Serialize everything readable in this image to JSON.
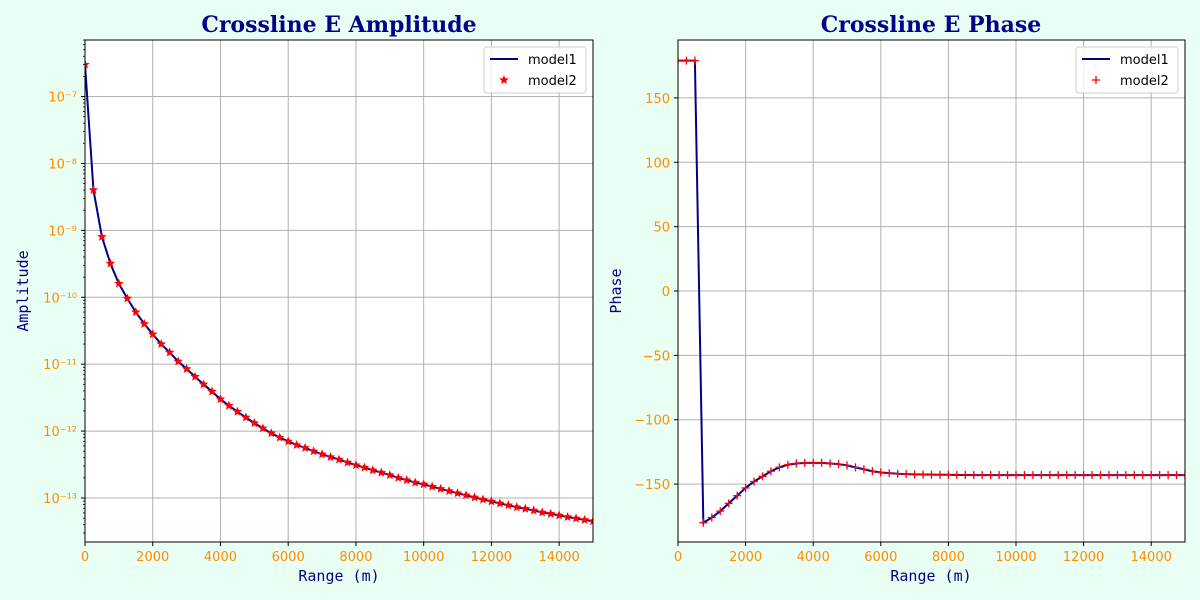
{
  "chart_data": [
    {
      "type": "line",
      "title": "Crossline E Amplitude",
      "xlabel": "Range (m)",
      "ylabel": "Amplitude",
      "xlim": [
        0,
        15000
      ],
      "ylim": [
        2.2e-14,
        7e-07
      ],
      "yscale": "log",
      "grid": true,
      "legend_position": "top-right",
      "x_ticks": [
        0,
        2000,
        4000,
        6000,
        8000,
        10000,
        12000,
        14000
      ],
      "y_ticks": [
        -13,
        -12,
        -11,
        -10,
        -9,
        -8,
        -7
      ],
      "series": [
        {
          "name": "model1",
          "style": "line",
          "color": "#00008b"
        },
        {
          "name": "model2",
          "style": "star-marker",
          "color": "#ff0000"
        }
      ],
      "x": [
        0,
        250,
        500,
        750,
        1000,
        1250,
        1500,
        1750,
        2000,
        2250,
        2500,
        2750,
        3000,
        3250,
        3500,
        3750,
        4000,
        4250,
        4500,
        4750,
        5000,
        5250,
        5500,
        5750,
        6000,
        6250,
        6500,
        6750,
        7000,
        7250,
        7500,
        7750,
        8000,
        8250,
        8500,
        8750,
        9000,
        9250,
        9500,
        9750,
        10000,
        10250,
        10500,
        10750,
        11000,
        11250,
        11500,
        11750,
        12000,
        12250,
        12500,
        12750,
        13000,
        13250,
        13500,
        13750,
        14000,
        14250,
        14500,
        14750,
        15000
      ],
      "values": [
        3e-07,
        4e-09,
        8e-10,
        3.2e-10,
        1.6e-10,
        9.6e-11,
        6e-11,
        4e-11,
        2.8e-11,
        2e-11,
        1.5e-11,
        1.1e-11,
        8.5e-12,
        6.5e-12,
        5e-12,
        3.9e-12,
        3e-12,
        2.4e-12,
        1.95e-12,
        1.6e-12,
        1.32e-12,
        1.1e-12,
        9.3e-13,
        8e-13,
        7e-13,
        6.2e-13,
        5.6e-13,
        5e-13,
        4.5e-13,
        4.1e-13,
        3.75e-13,
        3.4e-13,
        3.1e-13,
        2.85e-13,
        2.6e-13,
        2.4e-13,
        2.2e-13,
        2e-13,
        1.85e-13,
        1.7e-13,
        1.6e-13,
        1.48e-13,
        1.37e-13,
        1.27e-13,
        1.18e-13,
        1.1e-13,
        1.02e-13,
        9.5e-14,
        8.9e-14,
        8.3e-14,
        7.8e-14,
        7.3e-14,
        6.9e-14,
        6.5e-14,
        6.1e-14,
        5.8e-14,
        5.5e-14,
        5.2e-14,
        4.95e-14,
        4.7e-14,
        4.5e-14
      ]
    },
    {
      "type": "line",
      "title": "Crossline E Phase",
      "xlabel": "Range (m)",
      "ylabel": "Phase",
      "xlim": [
        0,
        15000
      ],
      "ylim": [
        -195,
        195
      ],
      "grid": true,
      "legend_position": "top-right",
      "x_ticks": [
        0,
        2000,
        4000,
        6000,
        8000,
        10000,
        12000,
        14000
      ],
      "y_ticks": [
        -150,
        -100,
        -50,
        0,
        50,
        100,
        150
      ],
      "series": [
        {
          "name": "model1",
          "style": "line",
          "color": "#00008b"
        },
        {
          "name": "model2",
          "style": "plus-marker",
          "color": "#ff0000"
        }
      ],
      "x": [
        0,
        250,
        500,
        750,
        1000,
        1250,
        1500,
        1750,
        2000,
        2250,
        2500,
        2750,
        3000,
        3250,
        3500,
        3750,
        4000,
        4250,
        4500,
        4750,
        5000,
        5250,
        5500,
        5750,
        6000,
        6250,
        6500,
        6750,
        7000,
        7250,
        7500,
        7750,
        8000,
        8250,
        8500,
        8750,
        9000,
        9250,
        9500,
        9750,
        10000,
        10250,
        10500,
        10750,
        11000,
        11250,
        11500,
        11750,
        12000,
        12250,
        12500,
        12750,
        13000,
        13250,
        13500,
        13750,
        14000,
        14250,
        14500,
        14750,
        15000
      ],
      "values": [
        179,
        179,
        179,
        -180,
        -176,
        -171,
        -165,
        -159,
        -153,
        -148,
        -144,
        -140,
        -137,
        -135,
        -134,
        -133.5,
        -133.5,
        -133.5,
        -134,
        -134.5,
        -135.5,
        -137,
        -138.5,
        -140,
        -141,
        -141.5,
        -142,
        -142.3,
        -142.5,
        -142.6,
        -142.7,
        -142.8,
        -142.8,
        -142.9,
        -142.9,
        -143,
        -143,
        -143,
        -143,
        -143,
        -143,
        -143,
        -143,
        -143,
        -143,
        -143,
        -143,
        -143,
        -143,
        -143,
        -143,
        -143,
        -143,
        -143,
        -143,
        -143,
        -143,
        -143,
        -143,
        -143,
        -143
      ]
    }
  ]
}
